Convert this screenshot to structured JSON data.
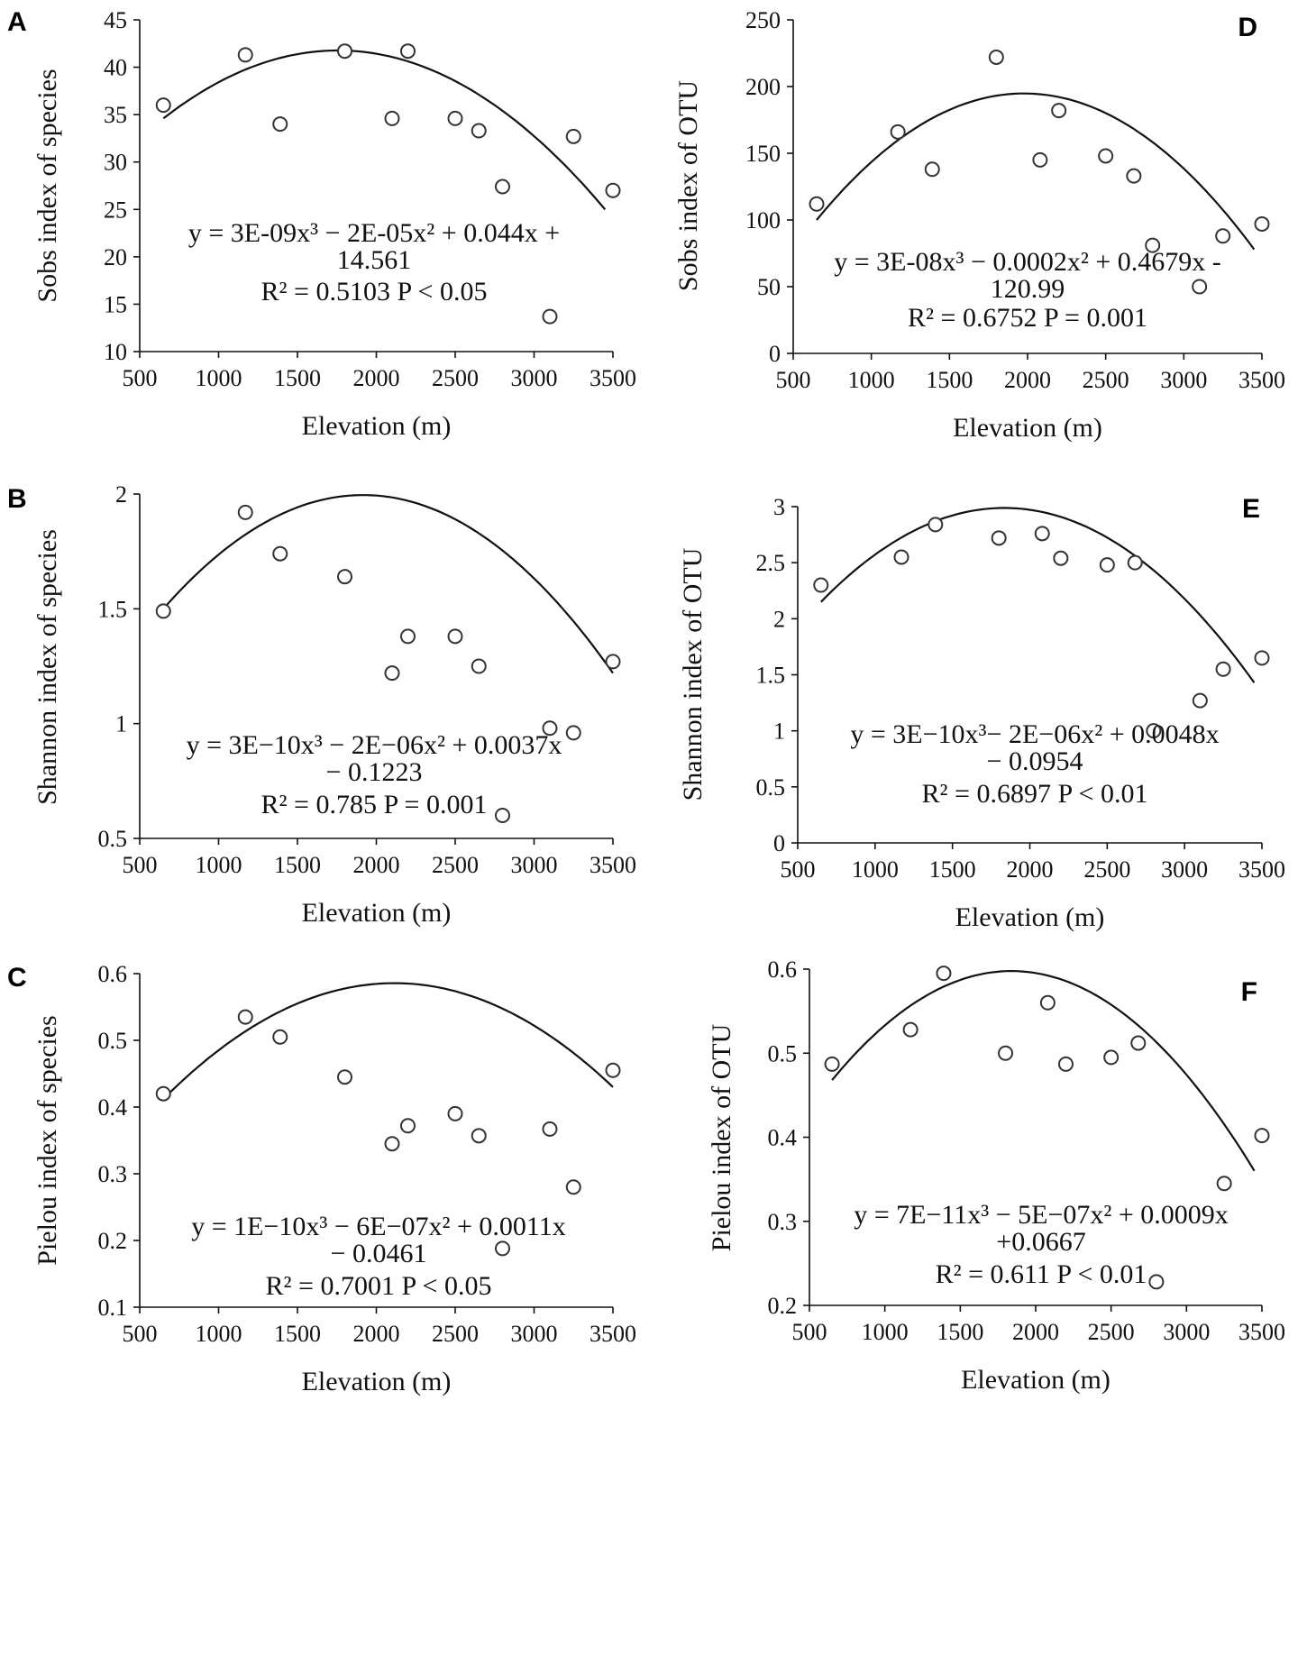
{
  "chart_data": [
    {
      "id": "A",
      "type": "scatter",
      "label": "A",
      "ylabel": "Sobs index of species",
      "xlabel": "Elevation (m)",
      "xlim": [
        500,
        3500
      ],
      "xticks": [
        500,
        1000,
        1500,
        2000,
        2500,
        3000,
        3500
      ],
      "ylim": [
        10,
        45
      ],
      "yticks": [
        10,
        15,
        20,
        25,
        30,
        35,
        40,
        45
      ],
      "points": [
        [
          650,
          36
        ],
        [
          1170,
          41.3
        ],
        [
          1390,
          34
        ],
        [
          1800,
          41.7
        ],
        [
          2100,
          34.6
        ],
        [
          2200,
          41.7
        ],
        [
          2500,
          34.6
        ],
        [
          2650,
          33.3
        ],
        [
          2800,
          27.4
        ],
        [
          3100,
          13.7
        ],
        [
          3250,
          32.7
        ],
        [
          3500,
          27
        ]
      ],
      "fit": [
        650,
        34.6,
        1350,
        40.8,
        3450,
        25.0
      ],
      "equation_lines": [
        "y = 3E-09x³ − 2E-05x² + 0.044x +",
        "14.561",
        "R² = 0.5103    P < 0.05"
      ]
    },
    {
      "id": "D",
      "type": "scatter",
      "label": "D",
      "ylabel": "Sobs index of OTU",
      "xlabel": "Elevation (m)",
      "xlim": [
        500,
        3500
      ],
      "xticks": [
        500,
        1000,
        1500,
        2000,
        2500,
        3000,
        3500
      ],
      "ylim": [
        0,
        250
      ],
      "yticks": [
        0,
        50,
        100,
        150,
        200,
        250
      ],
      "points": [
        [
          650,
          112
        ],
        [
          1170,
          166
        ],
        [
          1390,
          138
        ],
        [
          1800,
          222
        ],
        [
          2080,
          145
        ],
        [
          2200,
          182
        ],
        [
          2500,
          148
        ],
        [
          2680,
          133
        ],
        [
          2800,
          81
        ],
        [
          3100,
          50
        ],
        [
          3250,
          88
        ],
        [
          3500,
          97
        ]
      ],
      "fit": [
        650,
        100,
        1550,
        185,
        3450,
        78
      ],
      "equation_lines": [
        "y = 3E-08x³ − 0.0002x² + 0.4679x -",
        "120.99",
        "R² = 0.6752    P = 0.001"
      ]
    },
    {
      "id": "B",
      "type": "scatter",
      "label": "B",
      "ylabel": "Shannon index of species",
      "xlabel": "Elevation (m)",
      "xlim": [
        500,
        3500
      ],
      "xticks": [
        500,
        1000,
        1500,
        2000,
        2500,
        3000,
        3500
      ],
      "ylim": [
        0.5,
        2
      ],
      "yticks": [
        0.5,
        1,
        1.5,
        2
      ],
      "ytick_labels": [
        "0.5",
        "1",
        "1.5",
        "2"
      ],
      "points": [
        [
          650,
          1.49
        ],
        [
          1170,
          1.92
        ],
        [
          1390,
          1.74
        ],
        [
          1800,
          1.64
        ],
        [
          2100,
          1.22
        ],
        [
          2200,
          1.38
        ],
        [
          2500,
          1.38
        ],
        [
          2650,
          1.25
        ],
        [
          2800,
          0.6
        ],
        [
          3100,
          0.98
        ],
        [
          3250,
          0.96
        ],
        [
          3500,
          1.27
        ]
      ],
      "fit": [
        650,
        1.5,
        1230,
        1.85,
        3500,
        1.22
      ],
      "equation_lines": [
        "y = 3E−10x³ − 2E−06x² + 0.0037x",
        "− 0.1223",
        "R² = 0.785    P = 0.001"
      ]
    },
    {
      "id": "E",
      "type": "scatter",
      "label": "E",
      "ylabel": "Shannon index of OTU",
      "xlabel": "Elevation (m)",
      "xlim": [
        500,
        3500
      ],
      "xticks": [
        500,
        1000,
        1500,
        2000,
        2500,
        3000,
        3500
      ],
      "ylim": [
        0,
        3
      ],
      "yticks": [
        0,
        0.5,
        1,
        1.5,
        2,
        2.5,
        3
      ],
      "points": [
        [
          650,
          2.3
        ],
        [
          1170,
          2.55
        ],
        [
          1390,
          2.84
        ],
        [
          1800,
          2.72
        ],
        [
          2080,
          2.76
        ],
        [
          2200,
          2.54
        ],
        [
          2500,
          2.48
        ],
        [
          2680,
          2.5
        ],
        [
          2800,
          1.0
        ],
        [
          3100,
          1.27
        ],
        [
          3250,
          1.55
        ],
        [
          3500,
          1.65
        ]
      ],
      "fit": [
        650,
        2.15,
        1450,
        2.9,
        3450,
        1.43
      ],
      "equation_lines": [
        "y = 3E−10x³− 2E−06x² + 0.0048x",
        "− 0.0954",
        "R² = 0.6897    P < 0.01"
      ]
    },
    {
      "id": "C",
      "type": "scatter",
      "label": "C",
      "ylabel": "Pielou index of species",
      "xlabel": "Elevation (m)",
      "xlim": [
        500,
        3500
      ],
      "xticks": [
        500,
        1000,
        1500,
        2000,
        2500,
        3000,
        3500
      ],
      "ylim": [
        0.1,
        0.6
      ],
      "yticks": [
        0.1,
        0.2,
        0.3,
        0.4,
        0.5,
        0.6
      ],
      "points": [
        [
          650,
          0.42
        ],
        [
          1170,
          0.535
        ],
        [
          1390,
          0.505
        ],
        [
          1800,
          0.445
        ],
        [
          2100,
          0.345
        ],
        [
          2200,
          0.372
        ],
        [
          2500,
          0.39
        ],
        [
          2650,
          0.357
        ],
        [
          2800,
          0.188
        ],
        [
          3100,
          0.367
        ],
        [
          3250,
          0.28
        ],
        [
          3500,
          0.455
        ]
      ],
      "fit": [
        650,
        0.412,
        1200,
        0.518,
        3500,
        0.43
      ],
      "equation_lines": [
        "y = 1E−10x³ − 6E−07x² + 0.0011x",
        "− 0.0461",
        "R² = 0.7001    P < 0.05"
      ]
    },
    {
      "id": "F",
      "type": "scatter",
      "label": "F",
      "ylabel": "Pielou index of OTU",
      "xlabel": "Elevation (m)",
      "xlim": [
        500,
        3500
      ],
      "xticks": [
        500,
        1000,
        1500,
        2000,
        2500,
        3000,
        3500
      ],
      "ylim": [
        0.2,
        0.6
      ],
      "yticks": [
        0.2,
        0.3,
        0.4,
        0.5,
        0.6
      ],
      "points": [
        [
          650,
          0.487
        ],
        [
          1170,
          0.528
        ],
        [
          1390,
          0.595
        ],
        [
          1800,
          0.5
        ],
        [
          2080,
          0.56
        ],
        [
          2200,
          0.487
        ],
        [
          2500,
          0.495
        ],
        [
          2680,
          0.512
        ],
        [
          2800,
          0.228
        ],
        [
          3250,
          0.345
        ],
        [
          3500,
          0.402
        ]
      ],
      "fit": [
        650,
        0.468,
        1400,
        0.58,
        3450,
        0.36
      ],
      "equation_lines": [
        "y = 7E−11x³ − 5E−07x² + 0.0009x",
        "+0.0667",
        "R² = 0.611    P < 0.01"
      ]
    }
  ]
}
